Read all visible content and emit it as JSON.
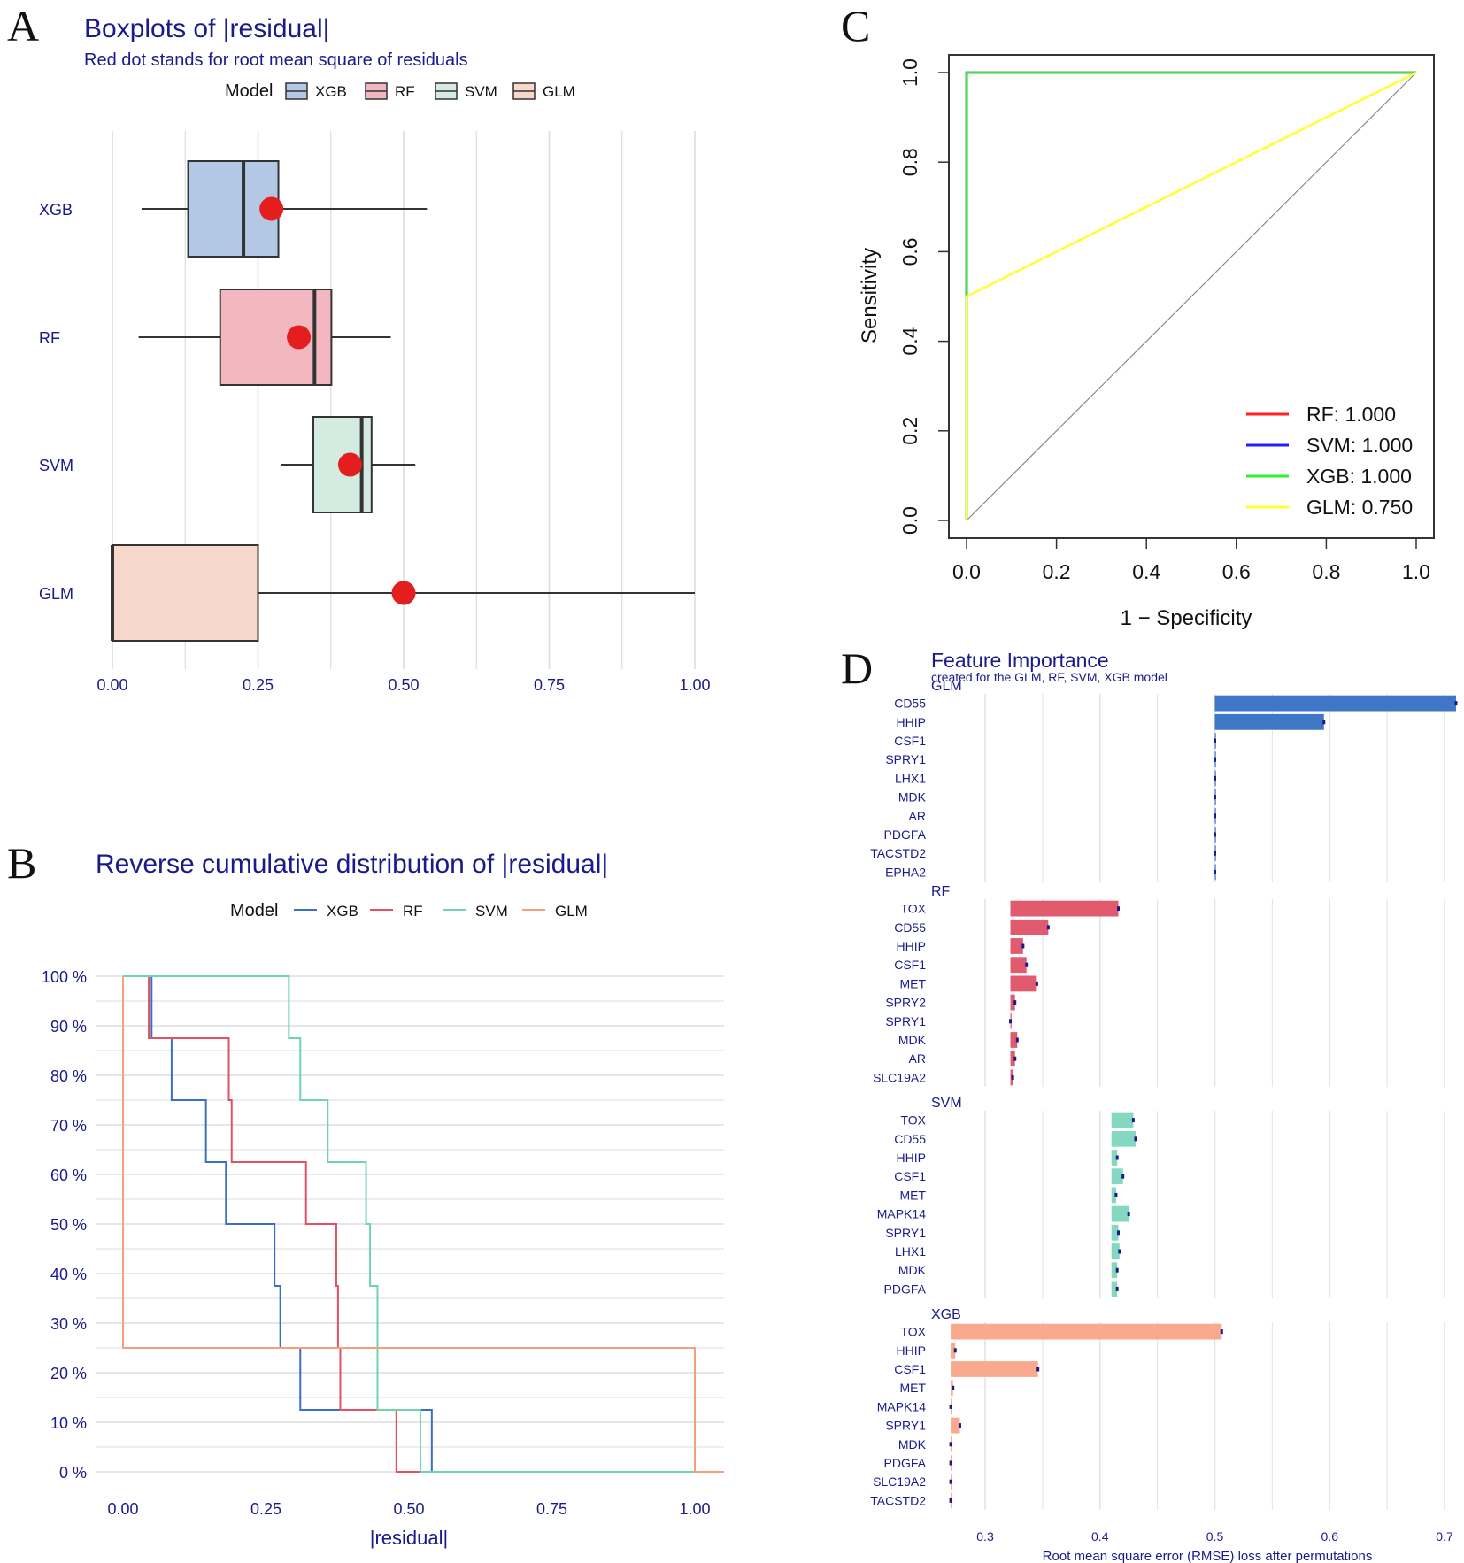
{
  "chart_data": [
    {
      "panel": "A",
      "type": "boxplot",
      "title": "Boxplots of |residual|",
      "subtitle": "Red dot stands for root mean square of residuals",
      "legend_title": "Model",
      "legend": [
        "XGB",
        "RF",
        "SVM",
        "GLM"
      ],
      "xlim": [
        0,
        1
      ],
      "xticks": [
        "0.00",
        "0.25",
        "0.50",
        "0.75",
        "1.00"
      ],
      "groups": [
        {
          "name": "XGB",
          "min": 0.05,
          "q1": 0.13,
          "median": 0.225,
          "q3": 0.285,
          "max": 0.54,
          "rmse": 0.273,
          "color": "#b3c8e4"
        },
        {
          "name": "RF",
          "min": 0.045,
          "q1": 0.185,
          "median": 0.347,
          "q3": 0.376,
          "max": 0.478,
          "rmse": 0.32,
          "color": "#f3b7c0"
        },
        {
          "name": "SVM",
          "min": 0.29,
          "q1": 0.345,
          "median": 0.428,
          "q3": 0.445,
          "max": 0.52,
          "rmse": 0.408,
          "color": "#d3ebe0"
        },
        {
          "name": "GLM",
          "min": 0.0,
          "q1": 0.0,
          "median": 0.0,
          "q3": 0.25,
          "max": 1.0,
          "rmse": 0.5,
          "color": "#f8d8cb"
        }
      ]
    },
    {
      "panel": "B",
      "type": "line",
      "title": "Reverse cumulative distribution of |residual|",
      "legend_title": "Model",
      "legend": [
        "XGB",
        "RF",
        "SVM",
        "GLM"
      ],
      "xlabel": "|residual|",
      "xlim": [
        0,
        1
      ],
      "ylim": [
        0,
        100
      ],
      "xticks": [
        "0.00",
        "0.25",
        "0.50",
        "0.75",
        "1.00"
      ],
      "yticks": [
        "0 %",
        "10 %",
        "20 %",
        "30 %",
        "40 %",
        "50 %",
        "60 %",
        "70 %",
        "80 %",
        "90 %",
        "100 %"
      ],
      "series": [
        {
          "name": "XGB",
          "color": "#3a6fc1",
          "steps": [
            [
              0.05,
              100
            ],
            [
              0.05,
              87.5
            ],
            [
              0.085,
              75
            ],
            [
              0.145,
              62.5
            ],
            [
              0.18,
              50
            ],
            [
              0.265,
              37.5
            ],
            [
              0.275,
              25
            ],
            [
              0.31,
              12.5
            ],
            [
              0.54,
              0
            ]
          ]
        },
        {
          "name": "RF",
          "color": "#e15065",
          "steps": [
            [
              0.045,
              100
            ],
            [
              0.045,
              87.5
            ],
            [
              0.185,
              75
            ],
            [
              0.19,
              62.5
            ],
            [
              0.32,
              50
            ],
            [
              0.373,
              37.5
            ],
            [
              0.376,
              25
            ],
            [
              0.38,
              12.5
            ],
            [
              0.478,
              0
            ]
          ]
        },
        {
          "name": "SVM",
          "color": "#6fd3ad",
          "steps": [
            [
              0.29,
              100
            ],
            [
              0.29,
              87.5
            ],
            [
              0.31,
              75
            ],
            [
              0.358,
              62.5
            ],
            [
              0.425,
              50
            ],
            [
              0.432,
              37.5
            ],
            [
              0.445,
              25
            ],
            [
              0.445,
              12.5
            ],
            [
              0.52,
              0
            ]
          ]
        },
        {
          "name": "GLM",
          "color": "#f4a07c",
          "steps": [
            [
              0.0,
              100
            ],
            [
              0.0,
              25
            ],
            [
              1.0,
              0
            ]
          ]
        }
      ]
    },
    {
      "panel": "C",
      "type": "line",
      "xlabel": "1 − Specificity",
      "ylabel": "Sensitivity",
      "xlim": [
        0,
        1
      ],
      "ylim": [
        0,
        1
      ],
      "xticks": [
        "0.0",
        "0.2",
        "0.4",
        "0.6",
        "0.8",
        "1.0"
      ],
      "yticks": [
        "0.0",
        "0.2",
        "0.4",
        "0.6",
        "0.8",
        "1.0"
      ],
      "series": [
        {
          "name": "RF",
          "label": "RF: 1.000",
          "color": "#ff2020",
          "points": [
            [
              0,
              0
            ],
            [
              0,
              1
            ],
            [
              1,
              1
            ]
          ]
        },
        {
          "name": "SVM",
          "label": "SVM: 1.000",
          "color": "#2020ff",
          "points": [
            [
              0,
              0
            ],
            [
              0,
              1
            ],
            [
              1,
              1
            ]
          ]
        },
        {
          "name": "XGB",
          "label": "XGB: 1.000",
          "color": "#33ee33",
          "points": [
            [
              0,
              0
            ],
            [
              0,
              1
            ],
            [
              1,
              1
            ]
          ]
        },
        {
          "name": "GLM",
          "label": "GLM: 0.750",
          "color": "#ffff33",
          "points": [
            [
              0,
              0
            ],
            [
              0,
              0.5
            ],
            [
              1,
              1
            ]
          ]
        }
      ]
    },
    {
      "panel": "D",
      "type": "bar",
      "title": "Feature Importance",
      "subtitle": "created for the GLM, RF, SVM, XGB model",
      "xlabel": "Root mean square error (RMSE) loss after permutations",
      "xlim": [
        0.27,
        0.71
      ],
      "xticks": [
        "0.3",
        "0.4",
        "0.5",
        "0.6",
        "0.7"
      ],
      "facets": [
        {
          "name": "GLM",
          "color": "#3f76c6",
          "baseline": 0.5,
          "features": [
            "CD55",
            "HHIP",
            "CSF1",
            "SPRY1",
            "LHX1",
            "MDK",
            "AR",
            "PDGFA",
            "TACSTD2",
            "EPHA2"
          ],
          "values": [
            0.71,
            0.595,
            0.5,
            0.5,
            0.5,
            0.5,
            0.5,
            0.5,
            0.5,
            0.5
          ]
        },
        {
          "name": "RF",
          "color": "#e25a6e",
          "baseline": 0.322,
          "features": [
            "TOX",
            "CD55",
            "HHIP",
            "CSF1",
            "MET",
            "SPRY2",
            "SPRY1",
            "MDK",
            "AR",
            "SLC19A2"
          ],
          "values": [
            0.416,
            0.355,
            0.333,
            0.336,
            0.345,
            0.326,
            0.322,
            0.328,
            0.326,
            0.324
          ]
        },
        {
          "name": "SVM",
          "color": "#84d8bf",
          "baseline": 0.41,
          "features": [
            "TOX",
            "CD55",
            "HHIP",
            "CSF1",
            "MET",
            "MAPK14",
            "SPRY1",
            "LHX1",
            "MDK",
            "PDGFA"
          ],
          "values": [
            0.429,
            0.431,
            0.415,
            0.42,
            0.414,
            0.425,
            0.416,
            0.417,
            0.415,
            0.415
          ]
        },
        {
          "name": "XGB",
          "color": "#f9a98d",
          "baseline": 0.27,
          "features": [
            "TOX",
            "HHIP",
            "CSF1",
            "MET",
            "MAPK14",
            "SPRY1",
            "MDK",
            "PDGFA",
            "SLC19A2",
            "TACSTD2"
          ],
          "values": [
            0.506,
            0.274,
            0.346,
            0.272,
            0.27,
            0.278,
            0.27,
            0.27,
            0.27,
            0.27
          ]
        }
      ]
    }
  ],
  "panel_labels": [
    "A",
    "B",
    "C",
    "D"
  ]
}
